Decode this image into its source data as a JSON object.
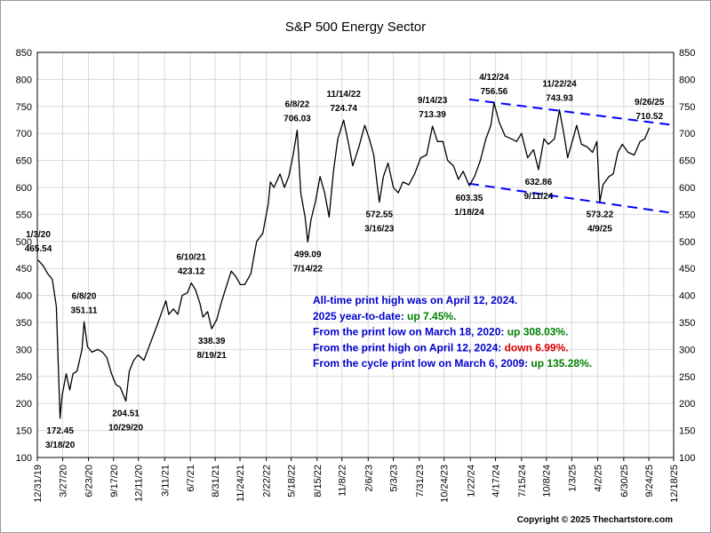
{
  "chart_data": {
    "type": "line",
    "title": "S&P 500 Energy Sector",
    "xlabel": "",
    "ylabel": "",
    "ylim": [
      100,
      850
    ],
    "y_ticks": [
      100,
      150,
      200,
      250,
      300,
      350,
      400,
      450,
      500,
      550,
      600,
      650,
      700,
      750,
      800,
      850
    ],
    "x_range": [
      "2019-12-31",
      "2025-12-18"
    ],
    "x_ticks": [
      "12/31/19",
      "3/27/20",
      "6/23/20",
      "9/17/20",
      "12/11/20",
      "3/11/21",
      "6/7/21",
      "8/31/21",
      "11/24/21",
      "2/22/22",
      "5/18/22",
      "8/15/22",
      "11/8/22",
      "2/6/23",
      "5/3/23",
      "7/31/23",
      "10/24/23",
      "1/22/24",
      "4/17/24",
      "7/15/24",
      "10/8/24",
      "1/3/25",
      "4/2/25",
      "6/30/25",
      "9/24/25",
      "12/18/25"
    ],
    "grid": true,
    "series": [
      {
        "color": "#000000",
        "points": [
          [
            "2020-01-03",
            465.54
          ],
          [
            "2020-01-20",
            455
          ],
          [
            "2020-02-05",
            440
          ],
          [
            "2020-02-20",
            430
          ],
          [
            "2020-03-05",
            380
          ],
          [
            "2020-03-10",
            300
          ],
          [
            "2020-03-18",
            172.45
          ],
          [
            "2020-03-25",
            215
          ],
          [
            "2020-04-08",
            255
          ],
          [
            "2020-04-20",
            225
          ],
          [
            "2020-05-01",
            255
          ],
          [
            "2020-05-15",
            260
          ],
          [
            "2020-06-01",
            300
          ],
          [
            "2020-06-08",
            351.11
          ],
          [
            "2020-06-20",
            305
          ],
          [
            "2020-07-05",
            295
          ],
          [
            "2020-07-25",
            300
          ],
          [
            "2020-08-10",
            295
          ],
          [
            "2020-08-25",
            285
          ],
          [
            "2020-09-10",
            255
          ],
          [
            "2020-09-25",
            235
          ],
          [
            "2020-10-10",
            230
          ],
          [
            "2020-10-29",
            204.51
          ],
          [
            "2020-11-10",
            260
          ],
          [
            "2020-11-25",
            280
          ],
          [
            "2020-12-10",
            290
          ],
          [
            "2020-12-30",
            280
          ],
          [
            "2021-01-20",
            310
          ],
          [
            "2021-02-10",
            340
          ],
          [
            "2021-03-05",
            375
          ],
          [
            "2021-03-15",
            390
          ],
          [
            "2021-03-25",
            365
          ],
          [
            "2021-04-10",
            375
          ],
          [
            "2021-04-25",
            365
          ],
          [
            "2021-05-10",
            400
          ],
          [
            "2021-05-28",
            405
          ],
          [
            "2021-06-10",
            423.12
          ],
          [
            "2021-06-25",
            410
          ],
          [
            "2021-07-10",
            385
          ],
          [
            "2021-07-20",
            360
          ],
          [
            "2021-08-05",
            370
          ],
          [
            "2021-08-19",
            338.39
          ],
          [
            "2021-09-05",
            355
          ],
          [
            "2021-09-20",
            385
          ],
          [
            "2021-10-10",
            420
          ],
          [
            "2021-10-25",
            445
          ],
          [
            "2021-11-10",
            435
          ],
          [
            "2021-11-25",
            420
          ],
          [
            "2021-12-10",
            420
          ],
          [
            "2021-12-31",
            440
          ],
          [
            "2022-01-20",
            500
          ],
          [
            "2022-02-10",
            515
          ],
          [
            "2022-03-01",
            570
          ],
          [
            "2022-03-08",
            610
          ],
          [
            "2022-03-20",
            600
          ],
          [
            "2022-04-10",
            625
          ],
          [
            "2022-04-25",
            600
          ],
          [
            "2022-05-10",
            620
          ],
          [
            "2022-05-25",
            660
          ],
          [
            "2022-06-08",
            706.03
          ],
          [
            "2022-06-20",
            590
          ],
          [
            "2022-07-05",
            545
          ],
          [
            "2022-07-14",
            499.09
          ],
          [
            "2022-07-25",
            540
          ],
          [
            "2022-08-10",
            575
          ],
          [
            "2022-08-25",
            620
          ],
          [
            "2022-09-10",
            590
          ],
          [
            "2022-09-25",
            545
          ],
          [
            "2022-10-10",
            630
          ],
          [
            "2022-10-25",
            690
          ],
          [
            "2022-11-14",
            724.74
          ],
          [
            "2022-12-01",
            680
          ],
          [
            "2022-12-15",
            640
          ],
          [
            "2023-01-05",
            675
          ],
          [
            "2023-01-25",
            715
          ],
          [
            "2023-02-10",
            690
          ],
          [
            "2023-02-25",
            660
          ],
          [
            "2023-03-16",
            572.55
          ],
          [
            "2023-03-30",
            620
          ],
          [
            "2023-04-15",
            645
          ],
          [
            "2023-05-03",
            600
          ],
          [
            "2023-05-20",
            590
          ],
          [
            "2023-06-05",
            610
          ],
          [
            "2023-06-25",
            605
          ],
          [
            "2023-07-15",
            625
          ],
          [
            "2023-08-05",
            655
          ],
          [
            "2023-08-25",
            660
          ],
          [
            "2023-09-14",
            713.39
          ],
          [
            "2023-10-01",
            685
          ],
          [
            "2023-10-20",
            685
          ],
          [
            "2023-11-05",
            650
          ],
          [
            "2023-11-25",
            640
          ],
          [
            "2023-12-12",
            615
          ],
          [
            "2023-12-28",
            630
          ],
          [
            "2024-01-18",
            603.35
          ],
          [
            "2024-02-05",
            620
          ],
          [
            "2024-02-25",
            650
          ],
          [
            "2024-03-15",
            690
          ],
          [
            "2024-04-01",
            715
          ],
          [
            "2024-04-12",
            756.56
          ],
          [
            "2024-04-30",
            720
          ],
          [
            "2024-05-20",
            695
          ],
          [
            "2024-06-10",
            690
          ],
          [
            "2024-06-28",
            685
          ],
          [
            "2024-07-15",
            700
          ],
          [
            "2024-08-05",
            655
          ],
          [
            "2024-08-25",
            670
          ],
          [
            "2024-09-11",
            632.86
          ],
          [
            "2024-09-30",
            690
          ],
          [
            "2024-10-15",
            680
          ],
          [
            "2024-11-05",
            690
          ],
          [
            "2024-11-22",
            743.93
          ],
          [
            "2024-12-10",
            690
          ],
          [
            "2024-12-20",
            655
          ],
          [
            "2025-01-10",
            695
          ],
          [
            "2025-01-20",
            715
          ],
          [
            "2025-02-05",
            680
          ],
          [
            "2025-02-25",
            675
          ],
          [
            "2025-03-15",
            665
          ],
          [
            "2025-03-30",
            685
          ],
          [
            "2025-04-09",
            573.22
          ],
          [
            "2025-04-20",
            605
          ],
          [
            "2025-05-10",
            620
          ],
          [
            "2025-05-25",
            625
          ],
          [
            "2025-06-10",
            665
          ],
          [
            "2025-06-25",
            680
          ],
          [
            "2025-07-15",
            665
          ],
          [
            "2025-08-05",
            660
          ],
          [
            "2025-08-25",
            685
          ],
          [
            "2025-09-10",
            690
          ],
          [
            "2025-09-26",
            710.52
          ]
        ]
      }
    ],
    "trendlines": [
      {
        "color": "#0000ff",
        "from": [
          "2024-01-18",
          763
        ],
        "to": [
          "2025-12-10",
          716
        ]
      },
      {
        "color": "#0000ff",
        "from": [
          "2024-01-18",
          607
        ],
        "to": [
          "2025-12-10",
          553
        ]
      }
    ],
    "annotations": [
      {
        "lines": [
          "1/3/20",
          "465.54"
        ],
        "at": [
          "2020-01-03",
          465.54
        ],
        "pos": "above"
      },
      {
        "lines": [
          "172.45",
          "3/18/20"
        ],
        "at": [
          "2020-03-18",
          172.45
        ],
        "pos": "below"
      },
      {
        "lines": [
          "6/8/20",
          "351.11"
        ],
        "at": [
          "2020-06-08",
          351.11
        ],
        "pos": "above"
      },
      {
        "lines": [
          "204.51",
          "10/29/20"
        ],
        "at": [
          "2020-10-29",
          204.51
        ],
        "pos": "below"
      },
      {
        "lines": [
          "6/10/21",
          "423.12"
        ],
        "at": [
          "2021-06-10",
          423.12
        ],
        "pos": "above"
      },
      {
        "lines": [
          "338.39",
          "8/19/21"
        ],
        "at": [
          "2021-08-19",
          338.39
        ],
        "pos": "below"
      },
      {
        "lines": [
          "6/8/22",
          "706.03"
        ],
        "at": [
          "2022-06-08",
          706.03
        ],
        "pos": "above"
      },
      {
        "lines": [
          "499.09",
          "7/14/22"
        ],
        "at": [
          "2022-07-14",
          499.09
        ],
        "pos": "below"
      },
      {
        "lines": [
          "11/14/22",
          "724.74"
        ],
        "at": [
          "2022-11-14",
          724.74
        ],
        "pos": "above"
      },
      {
        "lines": [
          "572.55",
          "3/16/23"
        ],
        "at": [
          "2023-03-16",
          572.55
        ],
        "pos": "below"
      },
      {
        "lines": [
          "9/14/23",
          "713.39"
        ],
        "at": [
          "2023-09-14",
          713.39
        ],
        "pos": "above"
      },
      {
        "lines": [
          "603.35",
          "1/18/24"
        ],
        "at": [
          "2024-01-18",
          603.35
        ],
        "pos": "below"
      },
      {
        "lines": [
          "4/12/24",
          "756.56"
        ],
        "at": [
          "2024-04-12",
          756.56
        ],
        "pos": "above"
      },
      {
        "lines": [
          "632.86",
          "9/11/24"
        ],
        "at": [
          "2024-09-11",
          632.86
        ],
        "pos": "below"
      },
      {
        "lines": [
          "11/22/24",
          "743.93"
        ],
        "at": [
          "2024-11-22",
          743.93
        ],
        "pos": "above"
      },
      {
        "lines": [
          "573.22",
          "4/9/25"
        ],
        "at": [
          "2025-04-09",
          573.22
        ],
        "pos": "below"
      },
      {
        "lines": [
          "9/26/25",
          "710.52"
        ],
        "at": [
          "2025-09-26",
          710.52
        ],
        "pos": "above"
      }
    ],
    "info_lines": [
      [
        {
          "text": "All-time print high was on April 12, 2024.",
          "color": "#0000cc"
        }
      ],
      [
        {
          "text": "2025 year-to-date:  ",
          "color": "#0000cc"
        },
        {
          "text": "up 7.45%.",
          "color": "#008000"
        }
      ],
      [
        {
          "text": "From the print low on March 18, 2020:  ",
          "color": "#0000cc"
        },
        {
          "text": "up 308.03%.",
          "color": "#008000"
        }
      ],
      [
        {
          "text": "From the print high on April 12, 2024:  ",
          "color": "#0000cc"
        },
        {
          "text": "down 6.99%.",
          "color": "#dd0000"
        }
      ],
      [
        {
          "text": "From the cycle print low on March 6, 2009:  ",
          "color": "#0000cc"
        },
        {
          "text": "up 135.28%.",
          "color": "#008000"
        }
      ]
    ],
    "copyright": "Copyright © 2025 Thechartstore.com"
  }
}
